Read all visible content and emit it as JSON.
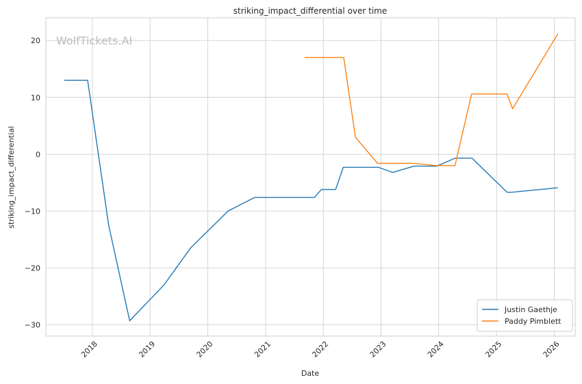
{
  "chart_data": {
    "type": "line",
    "title": "striking_impact_differential over time",
    "xlabel": "Date",
    "ylabel": "striking_impact_differential",
    "watermark": "WolfTickets.AI",
    "x_ticks": [
      "2018",
      "2019",
      "2020",
      "2021",
      "2022",
      "2023",
      "2024",
      "2025",
      "2026"
    ],
    "y_ticks": [
      20,
      10,
      0,
      -10,
      -20,
      -30
    ],
    "xlim": [
      "2017-03-13",
      "2026-05-13"
    ],
    "ylim": [
      -32,
      24
    ],
    "grid": true,
    "legend_position": "bottom-right",
    "series": [
      {
        "name": "Justin Gaethje",
        "color": "#1f77b4",
        "points": [
          [
            "2017-07-07",
            13
          ],
          [
            "2017-12-02",
            13
          ],
          [
            "2018-04-14",
            -12.5
          ],
          [
            "2018-08-25",
            -29.3
          ],
          [
            "2019-03-30",
            -23
          ],
          [
            "2019-09-14",
            -16.5
          ],
          [
            "2020-05-09",
            -10
          ],
          [
            "2020-10-24",
            -7.6
          ],
          [
            "2021-11-06",
            -7.6
          ],
          [
            "2021-12-20",
            -6.2
          ],
          [
            "2022-03-20",
            -6.2
          ],
          [
            "2022-05-07",
            -2.3
          ],
          [
            "2022-12-15",
            -2.3
          ],
          [
            "2023-03-15",
            -3.2
          ],
          [
            "2023-07-29",
            -2.1
          ],
          [
            "2023-12-20",
            -2.1
          ],
          [
            "2024-04-13",
            -0.7
          ],
          [
            "2024-07-30",
            -0.7
          ],
          [
            "2025-03-08",
            -6.7
          ],
          [
            "2025-04-05",
            -6.7
          ],
          [
            "2026-01-24",
            -5.9
          ]
        ]
      },
      {
        "name": "Paddy Pimblett",
        "color": "#ff7f0e",
        "points": [
          [
            "2021-09-04",
            17
          ],
          [
            "2022-05-10",
            17
          ],
          [
            "2022-07-23",
            3
          ],
          [
            "2022-12-10",
            -1.6
          ],
          [
            "2023-07-22",
            -1.6
          ],
          [
            "2023-12-16",
            -2.0
          ],
          [
            "2024-04-13",
            -2.0
          ],
          [
            "2024-07-27",
            10.6
          ],
          [
            "2025-03-08",
            10.6
          ],
          [
            "2025-04-12",
            8
          ],
          [
            "2026-01-24",
            21.2
          ]
        ]
      }
    ]
  }
}
